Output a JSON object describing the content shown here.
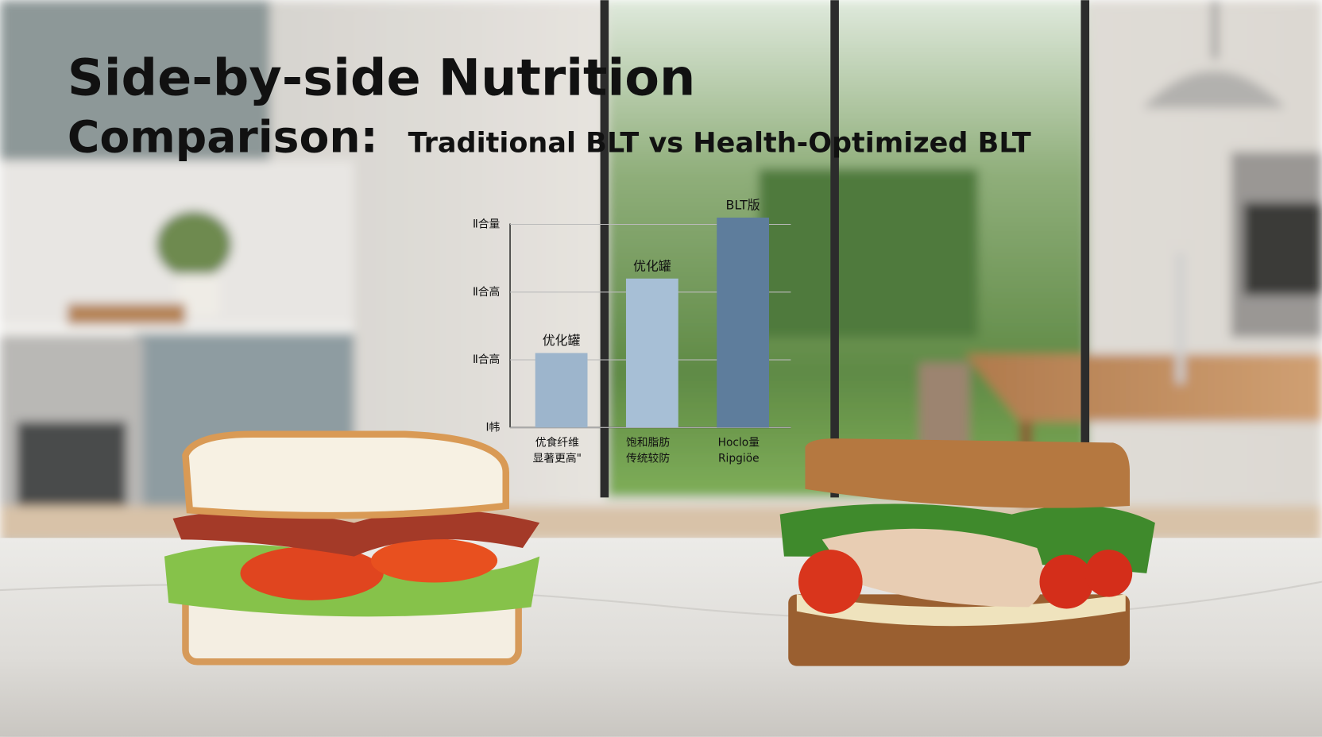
{
  "chart_data": {
    "type": "bar",
    "title": [
      "Side-by-side Nutrition",
      "Comparison:"
    ],
    "subtitle": "Traditional BLT vs Health-Optimized BLT",
    "categories": [
      "优食纤维",
      "饱和脂肪",
      "Hoclo量"
    ],
    "category_sublabels": [
      "显著更高\"",
      "传统较防",
      "Ripgiöe"
    ],
    "values": [
      1.1,
      2.2,
      3.1
    ],
    "bar_labels": [
      "优化罐",
      "优化罐",
      "BLT版"
    ],
    "colors": [
      "#9db5cc",
      "#a7bfd6",
      "#5e7d9c"
    ],
    "ylim": [
      0,
      3
    ],
    "yticks": [
      {
        "value": 0,
        "label": "I帏"
      },
      {
        "value": 1,
        "label": "Ⅱ合高"
      },
      {
        "value": 2,
        "label": "Ⅱ合高"
      },
      {
        "value": 3,
        "label": "Ⅱ合量"
      }
    ],
    "grid": true
  }
}
